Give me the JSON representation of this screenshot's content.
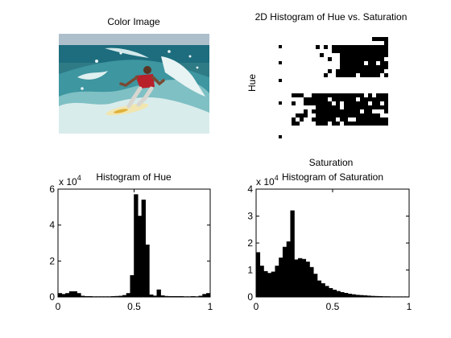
{
  "panels": {
    "image": {
      "title": "Color Image"
    },
    "hist2d": {
      "title": "2D Histogram of Hue vs. Saturation",
      "xlabel": "Saturation",
      "ylabel": "Hue"
    },
    "hue": {
      "title": "Histogram of Hue",
      "multiplier_base": "x 10",
      "multiplier_exp": "4"
    },
    "sat": {
      "title": "Histogram of Saturation",
      "multiplier_base": "x 10",
      "multiplier_exp": "4"
    }
  },
  "chart_data": [
    {
      "type": "image",
      "title": "Color Image",
      "content": "surfer riding a breaking wave"
    },
    {
      "type": "heatmap",
      "title": "2D Histogram of Hue vs. Saturation",
      "xlabel": "Saturation",
      "ylabel": "Hue",
      "grid": false,
      "palette": [
        "#ffffff",
        "#000000"
      ]
    },
    {
      "type": "bar",
      "title": "Histogram of Hue",
      "xlabel": "",
      "ylabel": "",
      "xlim": [
        0,
        1
      ],
      "ylim": [
        0,
        60000
      ],
      "xticks": [
        0,
        0.5,
        1
      ],
      "yticks": [
        0,
        2,
        4,
        6
      ],
      "y_multiplier": "x 10^4",
      "bar_color": "#000000",
      "x": [
        0.0125,
        0.0375,
        0.0625,
        0.0875,
        0.1125,
        0.1375,
        0.1625,
        0.1875,
        0.2125,
        0.2375,
        0.2625,
        0.2875,
        0.3125,
        0.3375,
        0.3625,
        0.3875,
        0.4125,
        0.4375,
        0.4625,
        0.4875,
        0.5125,
        0.5375,
        0.5625,
        0.5875,
        0.6125,
        0.6375,
        0.6625,
        0.6875,
        0.7125,
        0.7375,
        0.7625,
        0.7875,
        0.8125,
        0.8375,
        0.8625,
        0.8875,
        0.9125,
        0.9375,
        0.9625,
        0.9875
      ],
      "values": [
        2000,
        1500,
        2000,
        3000,
        3000,
        2000,
        500,
        300,
        300,
        200,
        200,
        200,
        200,
        200,
        300,
        400,
        500,
        900,
        2000,
        12000,
        57000,
        45000,
        54000,
        29000,
        1200,
        600,
        4000,
        700,
        400,
        300,
        300,
        300,
        300,
        200,
        200,
        300,
        200,
        500,
        1500,
        2000
      ]
    },
    {
      "type": "bar",
      "title": "Histogram of Saturation",
      "xlabel": "",
      "ylabel": "",
      "xlim": [
        0,
        1
      ],
      "ylim": [
        0,
        40000
      ],
      "xticks": [
        0,
        0.5,
        1
      ],
      "yticks": [
        0,
        1,
        2,
        3,
        4
      ],
      "y_multiplier": "x 10^4",
      "bar_color": "#000000",
      "x": [
        0.0125,
        0.0375,
        0.0625,
        0.0875,
        0.1125,
        0.1375,
        0.1625,
        0.1875,
        0.2125,
        0.2375,
        0.2625,
        0.2875,
        0.3125,
        0.3375,
        0.3625,
        0.3875,
        0.4125,
        0.4375,
        0.4625,
        0.4875,
        0.5125,
        0.5375,
        0.5625,
        0.5875,
        0.6125,
        0.6375,
        0.6625,
        0.6875,
        0.7125,
        0.7375,
        0.7625,
        0.7875,
        0.8125,
        0.8375,
        0.8625,
        0.8875,
        0.9125,
        0.9375,
        0.9625,
        0.9875
      ],
      "values": [
        16500,
        11500,
        9500,
        8800,
        9300,
        11500,
        14500,
        18500,
        20500,
        32000,
        13800,
        14300,
        14000,
        13000,
        11000,
        8500,
        6000,
        5000,
        4000,
        3200,
        2600,
        2100,
        1700,
        1400,
        1100,
        900,
        700,
        600,
        500,
        400,
        300,
        250,
        200,
        150,
        150,
        100,
        100,
        100,
        100,
        100
      ]
    }
  ]
}
